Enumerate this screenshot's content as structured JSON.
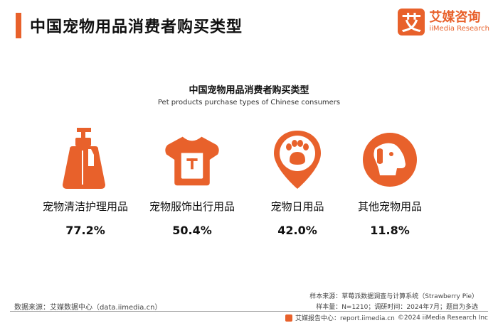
{
  "header": {
    "title": "中国宠物用品消费者购买类型",
    "logo_mark": "艾",
    "logo_cn": "艾媒咨询",
    "logo_en": "iiMedia Research"
  },
  "chart_data": {
    "type": "table",
    "title": "中国宠物用品消费者购买类型",
    "subtitle": "Pet products purchase types of Chinese consumers",
    "items": [
      {
        "label": "宠物清洁护理用品",
        "value": "77.2%",
        "icon": "shampoo-bottle-icon"
      },
      {
        "label": "宠物服饰出行用品",
        "value": "50.4%",
        "icon": "pet-shirt-icon"
      },
      {
        "label": "宠物日用品",
        "value": "42.0%",
        "icon": "paw-pin-icon"
      },
      {
        "label": "其他宠物用品",
        "value": "11.8%",
        "icon": "dog-head-icon"
      }
    ],
    "accent_color": "#e8612b"
  },
  "footer": {
    "source": "数据来源：艾媒数据中心（data.iimedia.cn）",
    "sample_source": "样本来源：草莓派数据调查与计算系统（Strawberry Pie）",
    "sample_size": "样本量：N=1210；调研时间：2024年7月；题目为多选",
    "report_center": "艾媒报告中心：report.iimedia.cn",
    "copyright": "©2024  iiMedia Research  Inc"
  }
}
